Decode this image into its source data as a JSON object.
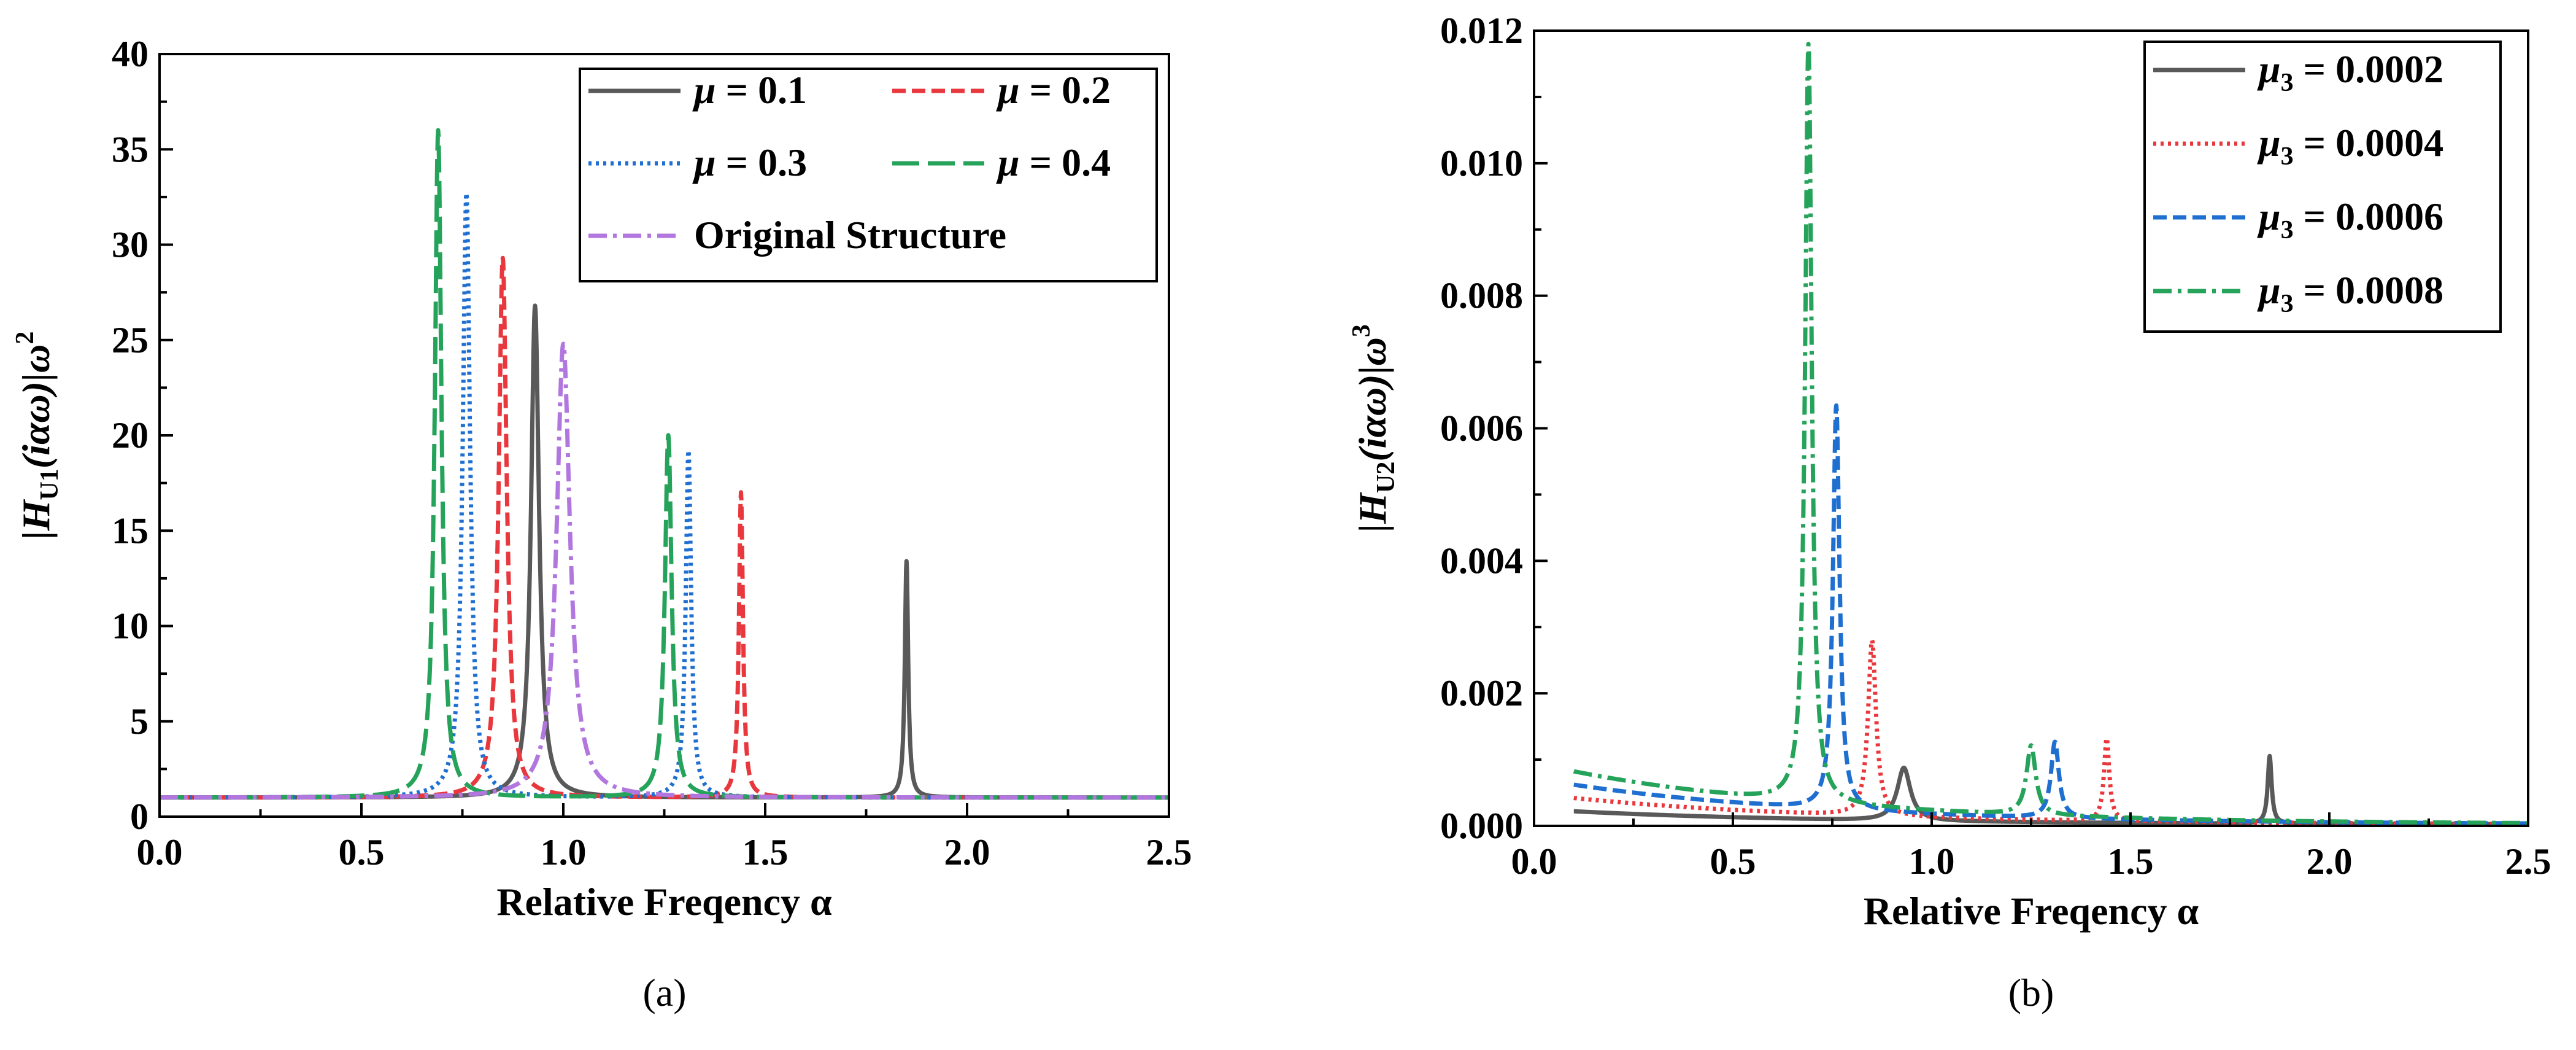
{
  "chart_data": [
    {
      "type": "line",
      "panel_label": "(a)",
      "xlabel": "Relative Freqency α",
      "ylabel": "|H_U1(iαω)|ω²",
      "ylabel_parts": {
        "main": "|H",
        "sub": "U1",
        "mid": "(iαω)|ω",
        "sup": "2"
      },
      "xlim": [
        0,
        2.5
      ],
      "ylim": [
        0,
        40
      ],
      "xticks": [
        "0.0",
        "0.5",
        "1.0",
        "1.5",
        "2.0",
        "2.5"
      ],
      "yticks": [
        "0",
        "5",
        "10",
        "15",
        "20",
        "25",
        "30",
        "35",
        "40"
      ],
      "xtick_values": [
        0,
        0.5,
        1.0,
        1.5,
        2.0,
        2.5
      ],
      "ytick_values": [
        0,
        5,
        10,
        15,
        20,
        25,
        30,
        35,
        40
      ],
      "legend_position": "top-right",
      "series": [
        {
          "name": "μ = 0.1",
          "sym": "μ",
          "val": " = 0.1",
          "color": "#595959",
          "dash": "solid",
          "peaks": [
            {
              "x": 0.93,
              "y": 26.8,
              "w": 0.012
            },
            {
              "x": 1.85,
              "y": 13.4,
              "w": 0.005
            }
          ],
          "tail": 0.25
        },
        {
          "name": "μ = 0.2",
          "sym": "μ",
          "val": " = 0.2",
          "color": "#e8383d",
          "dash": "short-dash",
          "peaks": [
            {
              "x": 0.85,
              "y": 29.3,
              "w": 0.012
            },
            {
              "x": 1.44,
              "y": 17.0,
              "w": 0.006
            }
          ],
          "tail": 0.25
        },
        {
          "name": "μ = 0.3",
          "sym": "μ",
          "val": " = 0.3",
          "color": "#1f6fd1",
          "dash": "dot",
          "peaks": [
            {
              "x": 0.76,
              "y": 32.7,
              "w": 0.011
            },
            {
              "x": 1.31,
              "y": 19.2,
              "w": 0.008
            }
          ],
          "tail": 0.25
        },
        {
          "name": "μ = 0.4",
          "sym": "μ",
          "val": " = 0.4",
          "color": "#26a35a",
          "dash": "long-dash",
          "peaks": [
            {
              "x": 0.69,
              "y": 36.0,
              "w": 0.01
            },
            {
              "x": 1.26,
              "y": 20.0,
              "w": 0.01
            }
          ],
          "tail": 0.25
        },
        {
          "name": "Original Structure",
          "sym": "",
          "val": "Original Structure",
          "color": "#b177de",
          "dash": "dash-dot",
          "peaks": [
            {
              "x": 1.0,
              "y": 24.8,
              "w": 0.02
            }
          ],
          "tail": 0.25
        }
      ]
    },
    {
      "type": "line",
      "panel_label": "(b)",
      "xlabel": "Relative Freqency α",
      "ylabel": "|H_U2(iαω)|ω³",
      "ylabel_parts": {
        "main": "|H",
        "sub": "U2",
        "mid": "(iαω)|ω",
        "sup": "3"
      },
      "xlim": [
        0,
        2.5
      ],
      "ylim": [
        0,
        0.012
      ],
      "xticks": [
        "0.0",
        "0.5",
        "1.0",
        "1.5",
        "2.0",
        "2.5"
      ],
      "yticks": [
        "0.000",
        "0.002",
        "0.004",
        "0.006",
        "0.008",
        "0.010",
        "0.012"
      ],
      "xtick_values": [
        0,
        0.5,
        1.0,
        1.5,
        2.0,
        2.5
      ],
      "ytick_values": [
        0,
        0.002,
        0.004,
        0.006,
        0.008,
        0.01,
        0.012
      ],
      "legend_position": "top-right",
      "series": [
        {
          "name": "μ3 = 0.0002",
          "sym": "μ",
          "sub": "3",
          "val": " = 0.0002",
          "color": "#595959",
          "dash": "solid",
          "start": 0.0002,
          "peaks": [
            {
              "x": 0.93,
              "y": 0.0008,
              "w": 0.02
            },
            {
              "x": 1.85,
              "y": 0.00102,
              "w": 0.006
            }
          ]
        },
        {
          "name": "μ3 = 0.0004",
          "sym": "μ",
          "sub": "3",
          "val": " = 0.0004",
          "color": "#e8383d",
          "dash": "dot",
          "start": 0.0004,
          "peaks": [
            {
              "x": 0.85,
              "y": 0.00265,
              "w": 0.012
            },
            {
              "x": 1.44,
              "y": 0.00125,
              "w": 0.008
            }
          ]
        },
        {
          "name": "μ3 = 0.0006",
          "sym": "μ",
          "sub": "3",
          "val": " = 0.0006",
          "color": "#1f6fd1",
          "dash": "short-dash",
          "start": 0.0006,
          "peaks": [
            {
              "x": 0.76,
              "y": 0.0061,
              "w": 0.01
            },
            {
              "x": 1.31,
              "y": 0.00115,
              "w": 0.012
            }
          ]
        },
        {
          "name": "μ3 = 0.0008",
          "sym": "μ",
          "sub": "3",
          "val": " = 0.0008",
          "color": "#26a35a",
          "dash": "dash-dot",
          "start": 0.0008,
          "peaks": [
            {
              "x": 0.69,
              "y": 0.01145,
              "w": 0.01
            },
            {
              "x": 1.25,
              "y": 0.00105,
              "w": 0.014
            }
          ]
        }
      ]
    }
  ]
}
